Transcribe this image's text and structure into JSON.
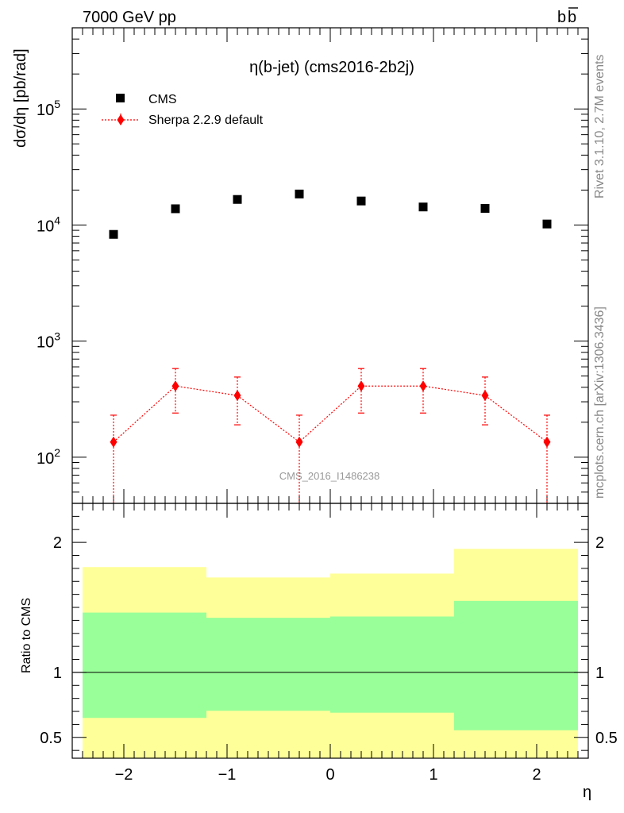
{
  "header": {
    "left": "7000 GeV pp",
    "right": "b",
    "right_bar": "b"
  },
  "side_labels": {
    "rivet": "Rivet 3.1.10,  2.7M events",
    "mcplots": "mcplots.cern.ch [arXiv:1306.3436]"
  },
  "chart_data": [
    {
      "type": "scatter",
      "title": "η(b-jet) (cms2016-2b2j)",
      "watermark": "CMS_2016_I1486238",
      "ylabel": "dσ/dη [pb/rad]",
      "xlabel": "",
      "y_scale": "log",
      "xlim": [
        -2.5,
        2.5
      ],
      "ylim": [
        40,
        500000
      ],
      "y_ticks": [
        {
          "value": 100,
          "base": "10",
          "exp": "2"
        },
        {
          "value": 1000,
          "base": "10",
          "exp": "3"
        },
        {
          "value": 10000,
          "base": "10",
          "exp": "4"
        },
        {
          "value": 100000,
          "base": "10",
          "exp": "5"
        }
      ],
      "legend_position": "top-left",
      "series": [
        {
          "name": "CMS",
          "marker": "square",
          "color": "#000000",
          "x": [
            -2.1,
            -1.5,
            -0.9,
            -0.3,
            0.3,
            0.9,
            1.5,
            2.1
          ],
          "y": [
            8300,
            13800,
            16600,
            18500,
            16100,
            14300,
            13900,
            10200
          ]
        },
        {
          "name": "Sherpa 2.2.9 default",
          "marker": "diamond",
          "line": "dotted",
          "color": "#ff0000",
          "x": [
            -2.1,
            -1.5,
            -0.9,
            -0.3,
            0.3,
            0.9,
            1.5,
            2.1
          ],
          "y": [
            135,
            410,
            340,
            135,
            410,
            410,
            340,
            135
          ],
          "y_low": [
            40,
            240,
            190,
            40,
            240,
            240,
            190,
            40
          ],
          "y_high": [
            230,
            580,
            490,
            230,
            580,
            580,
            490,
            230
          ]
        }
      ]
    },
    {
      "type": "area",
      "ylabel": "Ratio to CMS",
      "xlabel": "η",
      "xlim": [
        -2.5,
        2.5
      ],
      "ylim": [
        0.34,
        2.3
      ],
      "x_ticks": [
        -2,
        -1,
        0,
        1,
        2
      ],
      "x_tick_labels": [
        "−2",
        "−1",
        "0",
        "1",
        "2"
      ],
      "y_ticks": [
        0.5,
        1,
        2
      ],
      "y_tick_labels": [
        "0.5",
        "1",
        "2"
      ],
      "reference_line": 1,
      "bands": [
        {
          "name": "outer",
          "color": "#ffff99",
          "bins": [
            {
              "x0": -2.4,
              "x1": -1.2,
              "lo": 0.34,
              "hi": 1.81
            },
            {
              "x0": -1.2,
              "x1": 0.0,
              "lo": 0.34,
              "hi": 1.73
            },
            {
              "x0": 0.0,
              "x1": 1.2,
              "lo": 0.34,
              "hi": 1.76
            },
            {
              "x0": 1.2,
              "x1": 2.4,
              "lo": 0.34,
              "hi": 1.95
            }
          ]
        },
        {
          "name": "inner",
          "color": "#99ff99",
          "bins": [
            {
              "x0": -2.4,
              "x1": -1.2,
              "lo": 0.65,
              "hi": 1.46
            },
            {
              "x0": -1.2,
              "x1": 0.0,
              "lo": 0.705,
              "hi": 1.42
            },
            {
              "x0": 0.0,
              "x1": 1.2,
              "lo": 0.69,
              "hi": 1.43
            },
            {
              "x0": 1.2,
              "x1": 2.4,
              "lo": 0.555,
              "hi": 1.55
            }
          ]
        }
      ]
    }
  ]
}
